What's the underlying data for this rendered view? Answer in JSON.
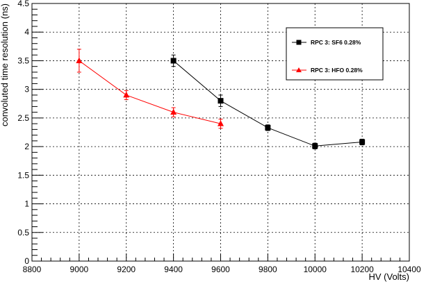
{
  "chart_data": {
    "type": "line",
    "xlabel": "HV (Volts)",
    "ylabel": "convoluted time resolution (ns)",
    "xlim": [
      8800,
      10400
    ],
    "ylim": [
      0,
      4.5
    ],
    "grid": true,
    "x_ticks": [
      8800,
      9000,
      9200,
      9400,
      9600,
      9800,
      10000,
      10200,
      10400
    ],
    "y_ticks": [
      0,
      0.5,
      1,
      1.5,
      2,
      2.5,
      3,
      3.5,
      4,
      4.5
    ],
    "x_tick_labels": [
      "8800",
      "9000",
      "9200",
      "9400",
      "9600",
      "9800",
      "10000",
      "10200",
      "10400"
    ],
    "y_tick_labels": [
      "0",
      "0.5",
      "1",
      "1.5",
      "2",
      "2.5",
      "3",
      "3.5",
      "4",
      "4.5"
    ],
    "legend_position": "top-right",
    "series": [
      {
        "name": "RPC 3: SF6 0.28%",
        "color": "#000000",
        "marker": "square",
        "x": [
          9400,
          9600,
          9800,
          10000,
          10200
        ],
        "y": [
          3.5,
          2.8,
          2.33,
          2.01,
          2.08
        ],
        "yerr": [
          0.1,
          0.1,
          0.05,
          0.05,
          0.05
        ]
      },
      {
        "name": "RPC 3: HFO 0.28%",
        "color": "#ff0000",
        "marker": "triangle",
        "x": [
          9000,
          9200,
          9400,
          9600
        ],
        "y": [
          3.5,
          2.9,
          2.6,
          2.4
        ],
        "yerr": [
          0.2,
          0.08,
          0.08,
          0.08
        ]
      }
    ]
  }
}
